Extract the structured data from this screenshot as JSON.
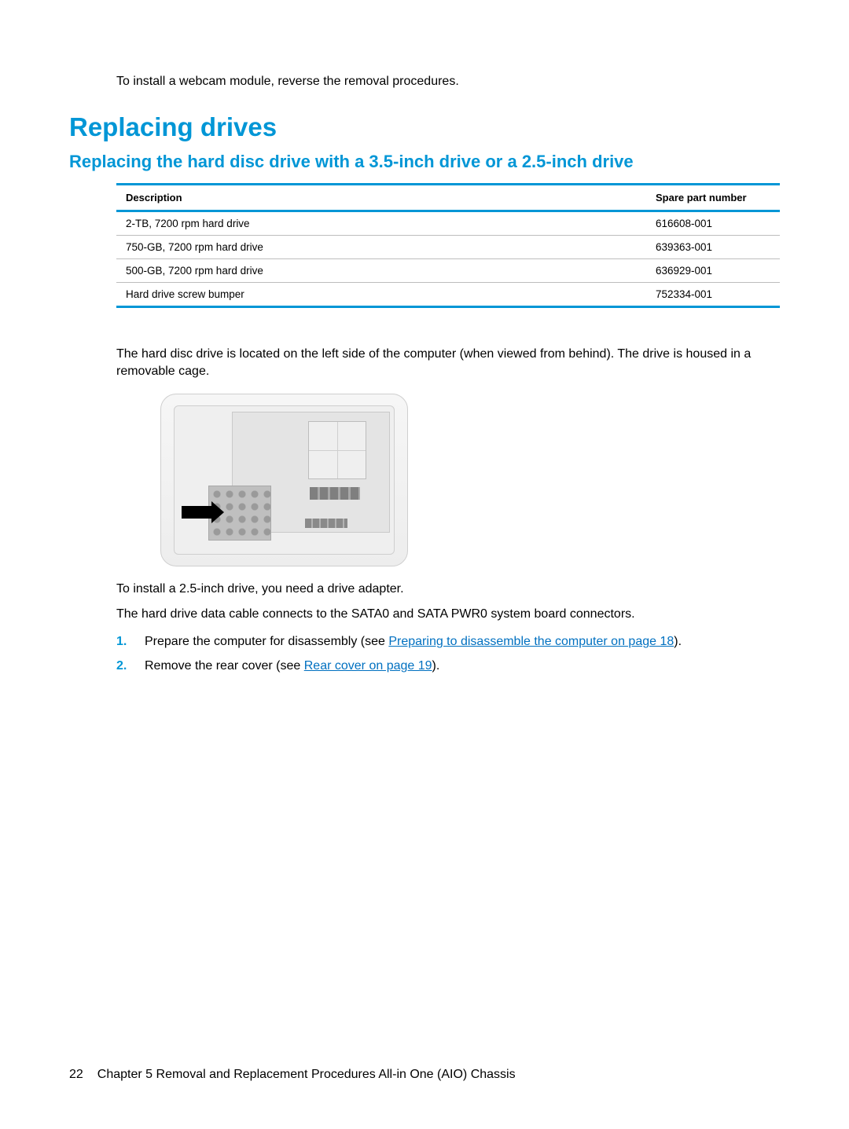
{
  "intro": "To install a webcam module, reverse the removal procedures.",
  "h1": "Replacing drives",
  "h2": "Replacing the hard disc drive with a 3.5-inch drive or a 2.5-inch drive",
  "table": {
    "header_desc": "Description",
    "header_part": "Spare part number",
    "rows": [
      {
        "desc": "2-TB, 7200 rpm hard drive",
        "part": "616608-001"
      },
      {
        "desc": "750-GB, 7200 rpm hard drive",
        "part": "639363-001"
      },
      {
        "desc": "500-GB, 7200 rpm hard drive",
        "part": "636929-001"
      },
      {
        "desc": "Hard drive screw bumper",
        "part": "752334-001"
      }
    ]
  },
  "para1": "The hard disc drive is located on the left side of the computer (when viewed from behind). The drive is housed in a removable cage.",
  "para2": "To install a 2.5-inch drive, you need a drive adapter.",
  "para3": "The hard drive data cable connects to the SATA0 and SATA PWR0 system board connectors.",
  "steps": [
    {
      "pre": "Prepare the computer for disassembly (see ",
      "link": "Preparing to disassemble the computer on page 18",
      "post": ")."
    },
    {
      "pre": "Remove the rear cover (see ",
      "link": "Rear cover on page 19",
      "post": ")."
    }
  ],
  "footer": {
    "page": "22",
    "chapter": "Chapter 5   Removal and Replacement Procedures All-in One (AIO) Chassis"
  },
  "colors": {
    "accent": "#0096d6",
    "link": "#0070c0",
    "rule": "#bdbdbd",
    "text": "#000000",
    "bg": "#ffffff"
  }
}
